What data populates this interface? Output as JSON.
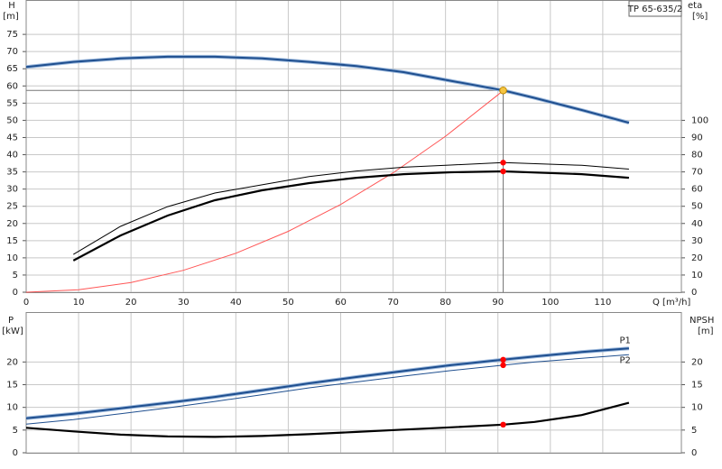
{
  "chart_data": [
    {
      "type": "line",
      "title": "TP 65-635/2",
      "ylabel": "H",
      "yunit": "[m]",
      "y2label": "eta",
      "y2unit": "[%]",
      "xlabel": "Q [m³/h]",
      "xlim": [
        0,
        125
      ],
      "xticks": [
        0,
        10,
        20,
        30,
        40,
        50,
        60,
        70,
        80,
        90,
        100,
        110
      ],
      "xtick_labels": true,
      "ylim": [
        0,
        85
      ],
      "yticks": [
        0,
        5,
        10,
        15,
        20,
        25,
        30,
        35,
        40,
        45,
        50,
        55,
        60,
        65,
        70,
        75
      ],
      "y2lim": [
        0,
        170
      ],
      "y2ticks": [
        0,
        10,
        20,
        30,
        40,
        50,
        60,
        70,
        80,
        90,
        100
      ],
      "grid": true,
      "series": [
        {
          "color": "#1f4f8f",
          "style": "halo",
          "x": [
            0,
            9,
            18,
            27,
            36,
            45,
            54,
            63,
            72,
            81,
            91,
            97,
            106,
            115
          ],
          "values": [
            65.5,
            67,
            68,
            68.5,
            68.5,
            68,
            67,
            65.8,
            64,
            61.5,
            58.7,
            56.5,
            53,
            49.3
          ]
        },
        {
          "color": "#ff5555",
          "style": "thin",
          "x": [
            0,
            10,
            20,
            30,
            40,
            50,
            60,
            70,
            80,
            90,
            91
          ],
          "values": [
            0,
            0.71,
            2.84,
            6.38,
            11.34,
            17.72,
            25.52,
            34.73,
            45.36,
            57.41,
            58.7
          ]
        },
        {
          "color": "#000000",
          "style": "thin",
          "axis": "y2",
          "x": [
            9,
            18,
            27,
            36,
            45,
            54,
            63,
            72,
            81,
            91,
            106,
            115
          ],
          "values": [
            22,
            38.3,
            49.8,
            57.7,
            62.5,
            67.3,
            70.5,
            72.7,
            74,
            75.4,
            73.8,
            71.6
          ]
        },
        {
          "color": "#000000",
          "style": "thick",
          "axis": "y2",
          "x": [
            9,
            18,
            27,
            36,
            45,
            54,
            63,
            72,
            81,
            91,
            106,
            115
          ],
          "values": [
            18.4,
            33,
            44.6,
            53.5,
            59.3,
            63.5,
            66.6,
            68.7,
            69.8,
            70.3,
            68.7,
            66.6
          ]
        }
      ],
      "duty_point": {
        "x": 91,
        "y": 58.7,
        "color": "#f5c542"
      },
      "marker_color": "#ff0000",
      "markers": [
        {
          "x": 91,
          "y": 75.4,
          "axis": "y2"
        },
        {
          "x": 91,
          "y": 70.3,
          "axis": "y2"
        }
      ]
    },
    {
      "type": "line",
      "ylabel": "P",
      "yunit": "[kW]",
      "y2label": "NPSH",
      "y2unit": "[m]",
      "xlim": [
        0,
        125
      ],
      "xticks": [
        10,
        20,
        30,
        40,
        50,
        60,
        70,
        80,
        90,
        100,
        110
      ],
      "xtick_labels": false,
      "ylim": [
        0,
        31
      ],
      "yticks": [
        0,
        5,
        10,
        15,
        20
      ],
      "y2lim": [
        0,
        31
      ],
      "y2ticks": [
        0,
        5,
        10,
        15,
        20
      ],
      "grid": true,
      "series": [
        {
          "name": "P1",
          "color": "#1f4f8f",
          "style": "halo",
          "x": [
            0,
            9,
            18,
            27,
            36,
            45,
            54,
            63,
            72,
            81,
            91,
            97,
            106,
            115
          ],
          "values": [
            7.6,
            8.6,
            9.8,
            11,
            12.3,
            13.8,
            15.3,
            16.7,
            18,
            19.3,
            20.5,
            21.2,
            22.2,
            23
          ]
        },
        {
          "name": "P2",
          "color": "#1f4f8f",
          "style": "thin",
          "x": [
            0,
            9,
            18,
            27,
            36,
            45,
            54,
            63,
            72,
            81,
            91,
            97,
            106,
            115
          ],
          "values": [
            6.3,
            7.3,
            8.6,
            9.9,
            11.3,
            12.8,
            14.3,
            15.6,
            16.9,
            18.1,
            19.3,
            20,
            20.8,
            21.6
          ]
        },
        {
          "color": "#000000",
          "style": "thick",
          "axis": "y2",
          "x": [
            0,
            9,
            18,
            27,
            36,
            45,
            54,
            63,
            72,
            81,
            91,
            97,
            106,
            115
          ],
          "values": [
            5.5,
            4.7,
            4,
            3.6,
            3.5,
            3.7,
            4.1,
            4.6,
            5.1,
            5.6,
            6.2,
            6.8,
            8.3,
            11
          ]
        }
      ],
      "marker_color": "#ff0000",
      "markers": [
        {
          "x": 91,
          "y": 20.5
        },
        {
          "x": 91,
          "y": 19.3
        },
        {
          "x": 91,
          "y": 6.2,
          "axis": "y2"
        }
      ]
    }
  ]
}
